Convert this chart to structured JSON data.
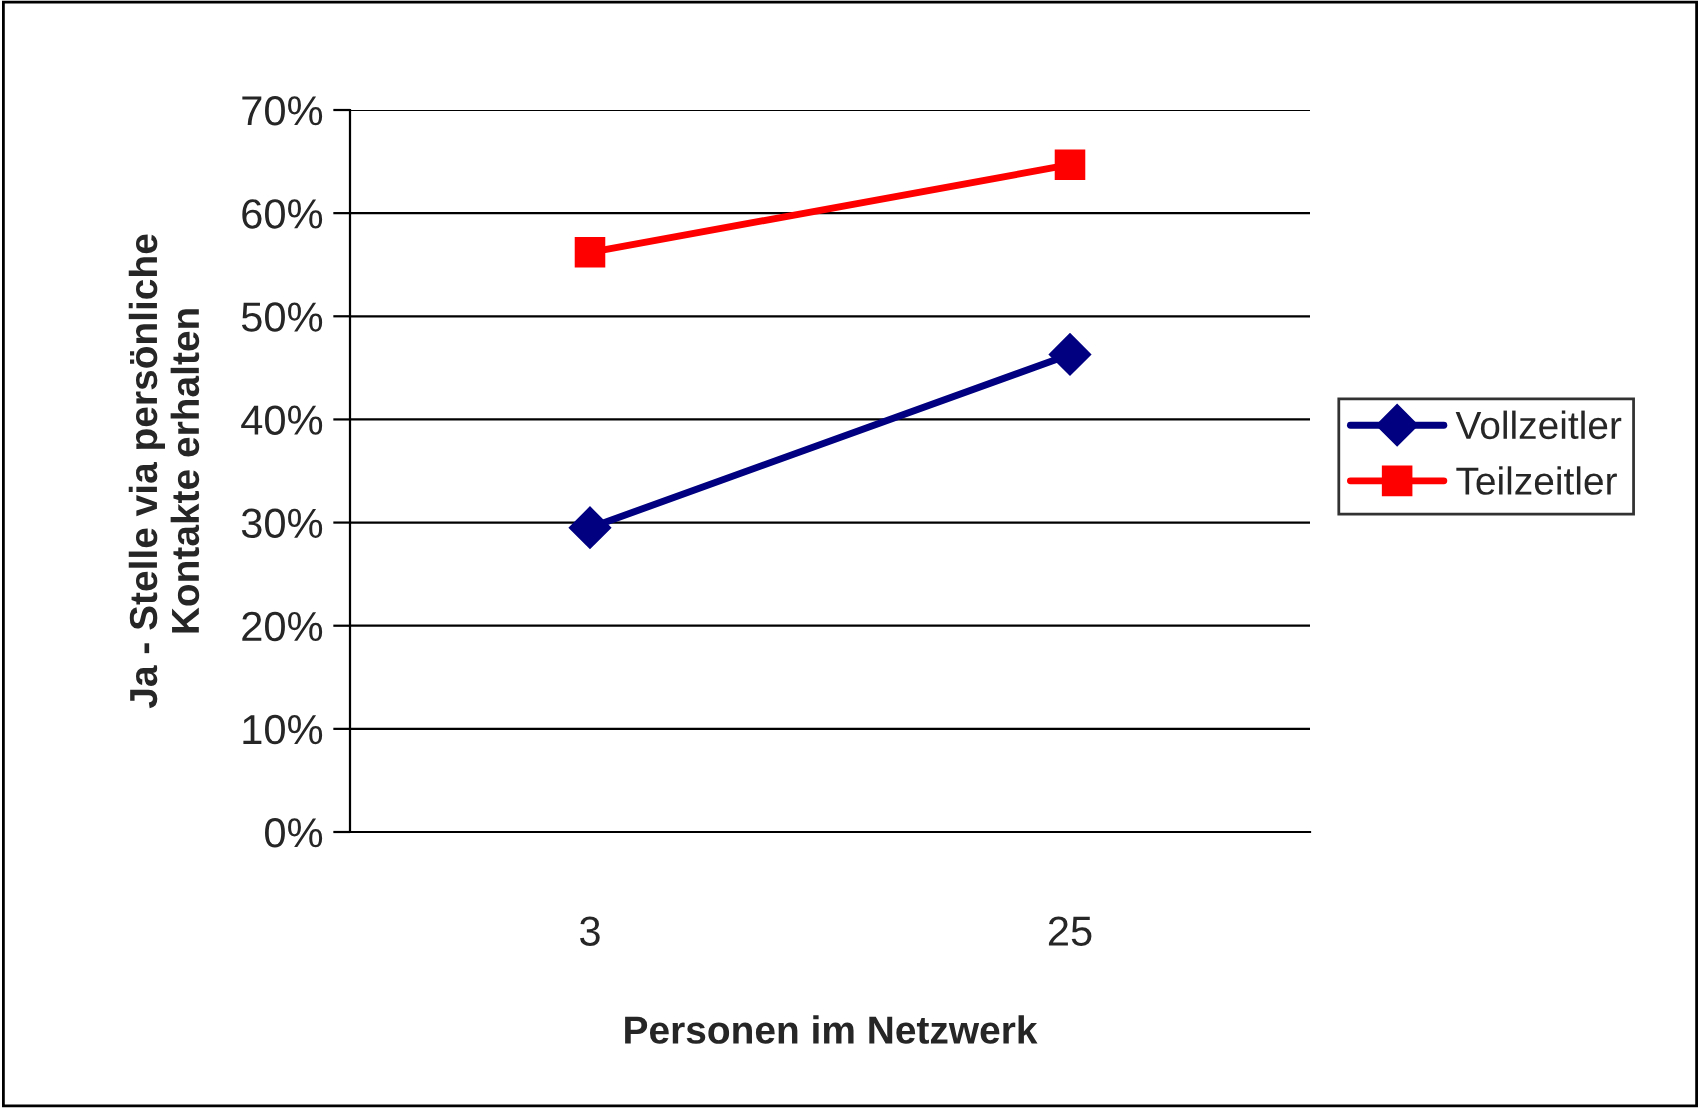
{
  "chart_data": {
    "type": "line",
    "categories": [
      "3",
      "25"
    ],
    "series": [
      {
        "name": "Vollzeitler",
        "color": "#000080",
        "values": [
          29.5,
          46.3
        ],
        "marker": "diamond"
      },
      {
        "name": "Teilzeitler",
        "color": "#ff0000",
        "values": [
          56.2,
          64.7
        ],
        "marker": "square"
      }
    ],
    "xlabel": "Personen im Netzwerk",
    "ylabel": "Ja - Stelle via persönliche\nKontakte erhalten",
    "ylim": [
      0,
      70
    ],
    "yticks": [
      {
        "value": 0,
        "label": "0%"
      },
      {
        "value": 10,
        "label": "10%"
      },
      {
        "value": 20,
        "label": "20%"
      },
      {
        "value": 30,
        "label": "30%"
      },
      {
        "value": 40,
        "label": "40%"
      },
      {
        "value": 50,
        "label": "50%"
      },
      {
        "value": 60,
        "label": "60%"
      },
      {
        "value": 70,
        "label": "70%"
      }
    ],
    "grid": "y",
    "legend": "right",
    "line_style": "solid"
  }
}
